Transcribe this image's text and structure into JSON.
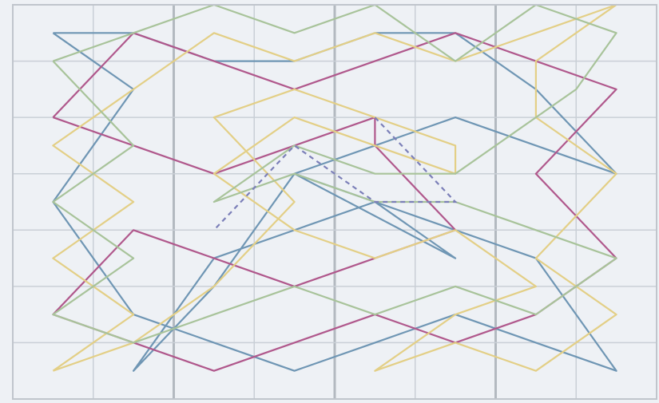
{
  "colors": {
    "background": "#eef1f5",
    "grid_minor": "#c9cfd6",
    "grid_major": "#b3b9c0",
    "frame": "#c0c5cc"
  },
  "grid": {
    "columns": 8,
    "rows": 7,
    "major_column_lines": [
      2,
      4,
      6
    ]
  },
  "paths": [
    {
      "id": "blue-path",
      "color": "#6f96b4",
      "points": [
        [
          0.5,
          0.5
        ],
        [
          1.5,
          1.5
        ],
        [
          0.5,
          3.5
        ],
        [
          1.5,
          5.5
        ],
        [
          2.5,
          6.0
        ],
        [
          3.5,
          6.5
        ],
        [
          4.5,
          6.0
        ],
        [
          5.5,
          5.5
        ],
        [
          6.5,
          6.0
        ],
        [
          7.5,
          6.5
        ],
        [
          6.5,
          4.5
        ],
        [
          5.5,
          4.0
        ],
        [
          4.5,
          3.5
        ],
        [
          2.5,
          4.5
        ],
        [
          1.5,
          6.5
        ],
        [
          2.5,
          5.0
        ],
        [
          3.5,
          3.0
        ],
        [
          5.5,
          4.5
        ],
        [
          4.5,
          3.5
        ],
        [
          3.5,
          3.0
        ],
        [
          4.5,
          2.5
        ],
        [
          5.5,
          2.0
        ],
        [
          7.5,
          3.0
        ],
        [
          6.5,
          1.5
        ],
        [
          5.5,
          0.5
        ],
        [
          4.5,
          0.5
        ],
        [
          3.5,
          1.0
        ],
        [
          2.5,
          1.0
        ],
        [
          1.5,
          0.5
        ],
        [
          0.5,
          0.5
        ]
      ]
    },
    {
      "id": "magenta-path",
      "color": "#b0588c",
      "points": [
        [
          0.5,
          2.0
        ],
        [
          1.5,
          0.5
        ],
        [
          2.5,
          1.0
        ],
        [
          3.5,
          1.5
        ],
        [
          4.5,
          1.0
        ],
        [
          5.5,
          0.5
        ],
        [
          6.5,
          1.0
        ],
        [
          7.5,
          1.5
        ],
        [
          6.5,
          3.0
        ],
        [
          7.5,
          4.5
        ],
        [
          6.5,
          5.5
        ],
        [
          5.5,
          6.0
        ],
        [
          4.5,
          5.5
        ],
        [
          3.5,
          6.0
        ],
        [
          2.5,
          6.5
        ],
        [
          0.5,
          5.5
        ],
        [
          1.5,
          4.0
        ],
        [
          2.5,
          4.5
        ],
        [
          3.5,
          5.0
        ],
        [
          4.5,
          4.5
        ],
        [
          5.5,
          4.0
        ],
        [
          4.5,
          2.5
        ],
        [
          4.5,
          2.0
        ],
        [
          3.5,
          2.5
        ],
        [
          2.5,
          3.0
        ],
        [
          0.5,
          2.0
        ]
      ]
    },
    {
      "id": "yellow-path",
      "color": "#e3cf86",
      "points": [
        [
          0.5,
          6.5
        ],
        [
          1.5,
          5.5
        ],
        [
          0.5,
          4.5
        ],
        [
          1.5,
          3.5
        ],
        [
          0.5,
          2.5
        ],
        [
          1.5,
          1.5
        ],
        [
          2.5,
          0.5
        ],
        [
          3.5,
          1.0
        ],
        [
          4.5,
          0.5
        ],
        [
          5.5,
          1.0
        ],
        [
          6.5,
          0.5
        ],
        [
          7.5,
          0.0
        ],
        [
          6.5,
          1.0
        ],
        [
          6.5,
          2.0
        ],
        [
          7.5,
          3.0
        ],
        [
          6.5,
          4.5
        ],
        [
          7.5,
          5.5
        ],
        [
          6.5,
          6.5
        ],
        [
          5.5,
          6.0
        ],
        [
          4.5,
          6.5
        ],
        [
          5.5,
          5.5
        ],
        [
          6.5,
          5.0
        ],
        [
          5.5,
          4.0
        ],
        [
          4.5,
          4.5
        ],
        [
          3.5,
          4.0
        ],
        [
          2.5,
          3.0
        ],
        [
          3.5,
          2.0
        ],
        [
          4.5,
          2.5
        ],
        [
          5.5,
          3.0
        ],
        [
          5.5,
          2.5
        ],
        [
          4.5,
          2.0
        ],
        [
          3.5,
          1.5
        ],
        [
          2.5,
          2.0
        ],
        [
          3.5,
          3.5
        ],
        [
          2.5,
          5.0
        ],
        [
          1.5,
          6.0
        ],
        [
          0.5,
          6.5
        ]
      ]
    },
    {
      "id": "green-path",
      "color": "#a8c39a",
      "points": [
        [
          0.5,
          1.0
        ],
        [
          1.5,
          0.5
        ],
        [
          2.5,
          0.0
        ],
        [
          3.5,
          0.5
        ],
        [
          4.5,
          0.0
        ],
        [
          5.5,
          1.0
        ],
        [
          6.5,
          0.0
        ],
        [
          7.5,
          0.5
        ],
        [
          7.0,
          1.5
        ],
        [
          6.5,
          2.0
        ],
        [
          5.5,
          3.0
        ],
        [
          4.5,
          3.0
        ],
        [
          3.5,
          2.5
        ],
        [
          2.5,
          3.5
        ],
        [
          3.5,
          3.0
        ],
        [
          4.5,
          3.5
        ],
        [
          5.5,
          3.5
        ],
        [
          6.5,
          4.0
        ],
        [
          7.5,
          4.5
        ],
        [
          6.5,
          5.5
        ],
        [
          5.5,
          5.0
        ],
        [
          4.5,
          5.5
        ],
        [
          3.5,
          5.0
        ],
        [
          2.5,
          5.5
        ],
        [
          1.5,
          6.0
        ],
        [
          0.5,
          5.5
        ],
        [
          1.5,
          4.5
        ],
        [
          0.5,
          3.5
        ],
        [
          1.5,
          2.5
        ],
        [
          0.5,
          1.0
        ]
      ]
    }
  ],
  "dashed_paths": [
    {
      "id": "dashed-center",
      "color": "#7b7fb8",
      "points": [
        [
          4.5,
          2.0
        ],
        [
          5.5,
          3.5
        ],
        [
          4.5,
          3.5
        ],
        [
          3.5,
          2.5
        ],
        [
          2.5,
          4.0
        ]
      ]
    }
  ]
}
